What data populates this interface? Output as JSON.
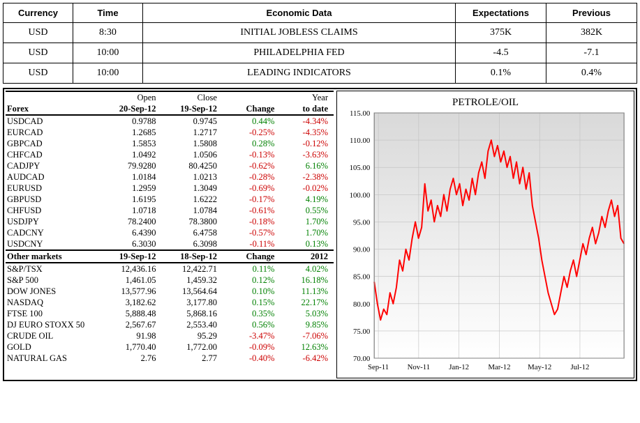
{
  "econ": {
    "headers": [
      "Currency",
      "Time",
      "Economic Data",
      "Expectations",
      "Previous"
    ],
    "rows": [
      {
        "currency": "USD",
        "time": "8:30",
        "data": "INITIAL JOBLESS CLAIMS",
        "exp": "375K",
        "prev": "382K"
      },
      {
        "currency": "USD",
        "time": "10:00",
        "data": "PHILADELPHIA FED",
        "exp": "-4.5",
        "prev": "-7.1"
      },
      {
        "currency": "USD",
        "time": "10:00",
        "data": "LEADING INDICATORS",
        "exp": "0.1%",
        "prev": "0.4%"
      }
    ]
  },
  "forex": {
    "header": {
      "label": "Forex",
      "open": "Open",
      "open_date": "20-Sep-12",
      "close": "Close",
      "close_date": "19-Sep-12",
      "change": "Change",
      "ytd": "Year",
      "ytd2": "to date"
    },
    "rows": [
      {
        "pair": "USDCAD",
        "open": "0.9788",
        "close": "0.9745",
        "chg": "0.44%",
        "chg_neg": false,
        "ytd": "-4.34%",
        "ytd_neg": true
      },
      {
        "pair": "EURCAD",
        "open": "1.2685",
        "close": "1.2717",
        "chg": "-0.25%",
        "chg_neg": true,
        "ytd": "-4.35%",
        "ytd_neg": true
      },
      {
        "pair": "GBPCAD",
        "open": "1.5853",
        "close": "1.5808",
        "chg": "0.28%",
        "chg_neg": false,
        "ytd": "-0.12%",
        "ytd_neg": true
      },
      {
        "pair": "CHFCAD",
        "open": "1.0492",
        "close": "1.0506",
        "chg": "-0.13%",
        "chg_neg": true,
        "ytd": "-3.63%",
        "ytd_neg": true
      },
      {
        "pair": "CADJPY",
        "open": "79.9280",
        "close": "80.4250",
        "chg": "-0.62%",
        "chg_neg": true,
        "ytd": "6.16%",
        "ytd_neg": false
      },
      {
        "pair": "AUDCAD",
        "open": "1.0184",
        "close": "1.0213",
        "chg": "-0.28%",
        "chg_neg": true,
        "ytd": "-2.38%",
        "ytd_neg": true
      },
      {
        "pair": "EURUSD",
        "open": "1.2959",
        "close": "1.3049",
        "chg": "-0.69%",
        "chg_neg": true,
        "ytd": "-0.02%",
        "ytd_neg": true
      },
      {
        "pair": "GBPUSD",
        "open": "1.6195",
        "close": "1.6222",
        "chg": "-0.17%",
        "chg_neg": true,
        "ytd": "4.19%",
        "ytd_neg": false
      },
      {
        "pair": "CHFUSD",
        "open": "1.0718",
        "close": "1.0784",
        "chg": "-0.61%",
        "chg_neg": true,
        "ytd": "0.55%",
        "ytd_neg": false
      },
      {
        "pair": "USDJPY",
        "open": "78.2400",
        "close": "78.3800",
        "chg": "-0.18%",
        "chg_neg": true,
        "ytd": "1.70%",
        "ytd_neg": false
      },
      {
        "pair": "CADCNY",
        "open": "6.4390",
        "close": "6.4758",
        "chg": "-0.57%",
        "chg_neg": true,
        "ytd": "1.70%",
        "ytd_neg": false
      },
      {
        "pair": "USDCNY",
        "open": "6.3030",
        "close": "6.3098",
        "chg": "-0.11%",
        "chg_neg": true,
        "ytd": "0.13%",
        "ytd_neg": false
      }
    ]
  },
  "other": {
    "header": {
      "label": "Other markets",
      "d1": "19-Sep-12",
      "d2": "18-Sep-12",
      "change": "Change",
      "ytd": "2012"
    },
    "rows": [
      {
        "name": "S&P/TSX",
        "v1": "12,436.16",
        "v2": "12,422.71",
        "chg": "0.11%",
        "chg_neg": false,
        "ytd": "4.02%",
        "ytd_neg": false
      },
      {
        "name": "S&P 500",
        "v1": "1,461.05",
        "v2": "1,459.32",
        "chg": "0.12%",
        "chg_neg": false,
        "ytd": "16.18%",
        "ytd_neg": false
      },
      {
        "name": "DOW JONES",
        "v1": "13,577.96",
        "v2": "13,564.64",
        "chg": "0.10%",
        "chg_neg": false,
        "ytd": "11.13%",
        "ytd_neg": false
      },
      {
        "name": "NASDAQ",
        "v1": "3,182.62",
        "v2": "3,177.80",
        "chg": "0.15%",
        "chg_neg": false,
        "ytd": "22.17%",
        "ytd_neg": false
      },
      {
        "name": "FTSE 100",
        "v1": "5,888.48",
        "v2": "5,868.16",
        "chg": "0.35%",
        "chg_neg": false,
        "ytd": "5.03%",
        "ytd_neg": false
      },
      {
        "name": "DJ EURO STOXX 50",
        "v1": "2,567.67",
        "v2": "2,553.40",
        "chg": "0.56%",
        "chg_neg": false,
        "ytd": "9.85%",
        "ytd_neg": false
      },
      {
        "name": "CRUDE OIL",
        "v1": "91.98",
        "v2": "95.29",
        "chg": "-3.47%",
        "chg_neg": true,
        "ytd": "-7.06%",
        "ytd_neg": true
      },
      {
        "name": "GOLD",
        "v1": "1,770.40",
        "v2": "1,772.00",
        "chg": "-0.09%",
        "chg_neg": true,
        "ytd": "12.63%",
        "ytd_neg": false
      },
      {
        "name": "NATURAL GAS",
        "v1": "2.76",
        "v2": "2.77",
        "chg": "-0.40%",
        "chg_neg": true,
        "ytd": "-6.42%",
        "ytd_neg": true
      }
    ]
  },
  "chart": {
    "title": "PETROLE/OIL",
    "type": "line",
    "line_color": "#ff0000",
    "line_width": 2,
    "plot_bg_top": "#d9d9d9",
    "plot_bg_bottom": "#ffffff",
    "grid_color": "#bfbfbf",
    "border_color": "#808080",
    "tick_fontsize": 11,
    "ylim": [
      70,
      115
    ],
    "ytick_step": 5,
    "x_categories": [
      "Sep-11",
      "Nov-11",
      "Jan-12",
      "Mar-12",
      "May-12",
      "Jul-12"
    ],
    "series": [
      84,
      80,
      77,
      79,
      78,
      82,
      80,
      83,
      88,
      86,
      90,
      88,
      92,
      95,
      92,
      94,
      102,
      97,
      99,
      95,
      98,
      96,
      100,
      97,
      101,
      103,
      100,
      102,
      98,
      101,
      99,
      103,
      100,
      104,
      106,
      103,
      108,
      110,
      107,
      109,
      106,
      108,
      105,
      107,
      103,
      106,
      102,
      105,
      101,
      104,
      98,
      95,
      92,
      88,
      85,
      82,
      80,
      78,
      79,
      82,
      85,
      83,
      86,
      88,
      85,
      88,
      91,
      89,
      92,
      94,
      91,
      93,
      96,
      94,
      97,
      99,
      96,
      98,
      92,
      91
    ]
  }
}
